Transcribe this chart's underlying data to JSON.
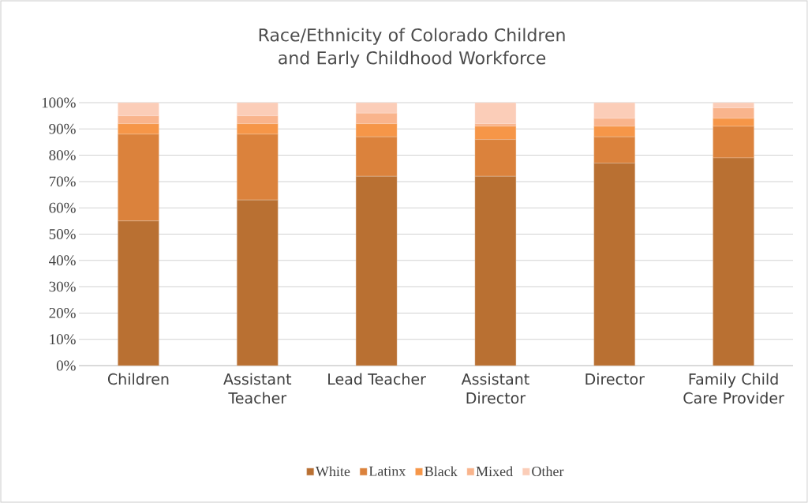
{
  "chart_data": {
    "type": "bar",
    "stacked": true,
    "title": "Race/Ethnicity of Colorado Children and Early Childhood Workforce",
    "categories": [
      "Children",
      "Assistant Teacher",
      "Lead Teacher",
      "Assistant Director",
      "Director",
      "Family Child Care Provider"
    ],
    "series": [
      {
        "name": "White",
        "color": "#b97032",
        "values": [
          55,
          63,
          72,
          72,
          77,
          79
        ]
      },
      {
        "name": "Latinx",
        "color": "#db823c",
        "values": [
          33,
          25,
          15,
          14,
          10,
          12
        ]
      },
      {
        "name": "Black",
        "color": "#f69648",
        "values": [
          4,
          4,
          5,
          5,
          4,
          3
        ]
      },
      {
        "name": "Mixed",
        "color": "#f9b48c",
        "values": [
          3,
          3,
          4,
          1,
          3,
          4
        ]
      },
      {
        "name": "Other",
        "color": "#fbcdb8",
        "values": [
          5,
          5,
          4,
          8,
          6,
          2
        ]
      }
    ],
    "ylim": [
      0,
      100
    ],
    "yticks": [
      {
        "value": 0,
        "label": "0%"
      },
      {
        "value": 10,
        "label": "10%"
      },
      {
        "value": 20,
        "label": "20%"
      },
      {
        "value": 30,
        "label": "30%"
      },
      {
        "value": 40,
        "label": "40%"
      },
      {
        "value": 50,
        "label": "50%"
      },
      {
        "value": 60,
        "label": "60%"
      },
      {
        "value": 70,
        "label": "70%"
      },
      {
        "value": 80,
        "label": "80%"
      },
      {
        "value": 90,
        "label": "90%"
      },
      {
        "value": 100,
        "label": "100%"
      }
    ],
    "grid": "y",
    "legend": "bottom"
  }
}
